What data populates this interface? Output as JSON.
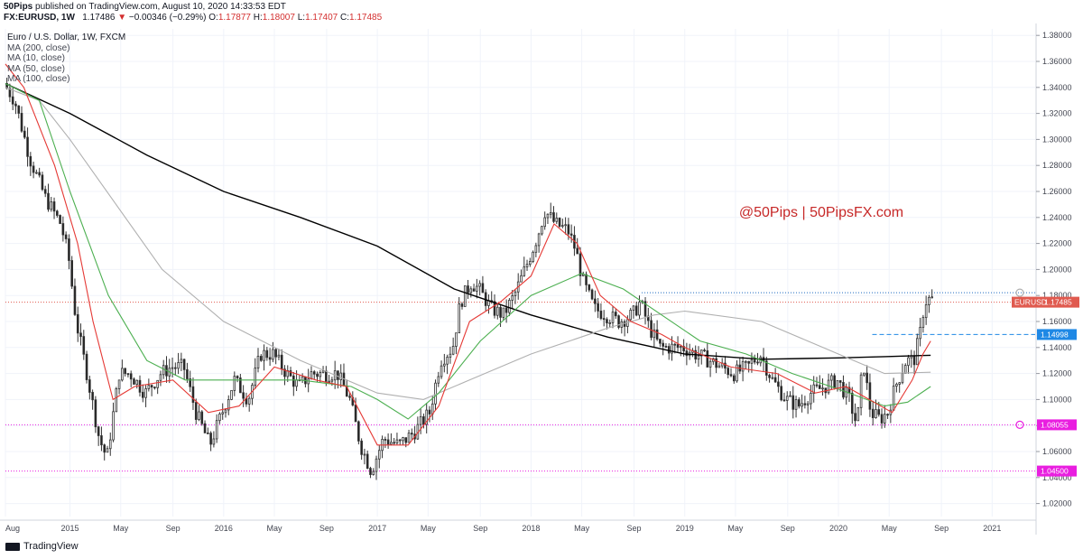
{
  "header": {
    "publisher": "50Pips",
    "published_text": "published on TradingView.com, August 10, 2020 14:33:53 EDT",
    "symbol": "FX:EURUSD, 1W",
    "last": "1.17486",
    "change_arrow": "▼",
    "change": "−0.00346 (−0.29%)",
    "open_label": "O:",
    "open": "1.17877",
    "high_label": "H:",
    "high": "1.18007",
    "low_label": "L:",
    "low": "1.17407",
    "close_label": "C:",
    "close": "1.17485"
  },
  "legend": {
    "title": "Euro / U.S. Dollar, 1W, FXCM",
    "items": [
      "MA (200, close)",
      "MA (10, close)",
      "MA (50, close)",
      "MA (100, close)"
    ]
  },
  "watermark": "@50Pips  |  50PipsFX.com",
  "footer": {
    "brand": "TradingView"
  },
  "colors": {
    "up": "#26a69a",
    "down": "#ef5350",
    "candle": "#4a4a4a",
    "ma200": "#000000",
    "ma10": "#e53935",
    "ma50": "#4caf50",
    "ma100": "#b0b0b0",
    "watermark": "#c62828",
    "price_tag": "#e05a4f",
    "blue_tag": "#1e88e5",
    "magenta_tag": "#e91ee0"
  },
  "chart_data": {
    "type": "candlestick",
    "symbol": "EURUSD",
    "interval": "1W",
    "y_axis": {
      "range": [
        1.01,
        1.385
      ],
      "ticks": [
        "1.38000",
        "1.36000",
        "1.34000",
        "1.32000",
        "1.30000",
        "1.28000",
        "1.26000",
        "1.24000",
        "1.22000",
        "1.20000",
        "1.18000",
        "1.16000",
        "1.14000",
        "1.12000",
        "1.10000",
        "1.08000",
        "1.06000",
        "1.04000",
        "1.02000"
      ]
    },
    "x_axis": {
      "labels": [
        {
          "t": "Aug",
          "d": 2014.58
        },
        {
          "t": "2015",
          "d": 2015.0
        },
        {
          "t": "May",
          "d": 2015.33
        },
        {
          "t": "Sep",
          "d": 2015.67
        },
        {
          "t": "2016",
          "d": 2016.0
        },
        {
          "t": "May",
          "d": 2016.33
        },
        {
          "t": "Sep",
          "d": 2016.67
        },
        {
          "t": "2017",
          "d": 2017.0
        },
        {
          "t": "May",
          "d": 2017.33
        },
        {
          "t": "Sep",
          "d": 2017.67
        },
        {
          "t": "2018",
          "d": 2018.0
        },
        {
          "t": "May",
          "d": 2018.33
        },
        {
          "t": "Sep",
          "d": 2018.67
        },
        {
          "t": "2019",
          "d": 2019.0
        },
        {
          "t": "May",
          "d": 2019.33
        },
        {
          "t": "Sep",
          "d": 2019.67
        },
        {
          "t": "2020",
          "d": 2020.0
        },
        {
          "t": "May",
          "d": 2020.33
        },
        {
          "t": "Sep",
          "d": 2020.67
        },
        {
          "t": "2021",
          "d": 2021.0
        }
      ],
      "range": [
        2014.58,
        2021.28
      ]
    },
    "price_path": [
      [
        2014.58,
        1.343
      ],
      [
        2014.65,
        1.33
      ],
      [
        2014.75,
        1.285
      ],
      [
        2014.85,
        1.255
      ],
      [
        2014.95,
        1.235
      ],
      [
        2015.0,
        1.21
      ],
      [
        2015.05,
        1.16
      ],
      [
        2015.12,
        1.12
      ],
      [
        2015.2,
        1.07
      ],
      [
        2015.25,
        1.055
      ],
      [
        2015.33,
        1.12
      ],
      [
        2015.4,
        1.12
      ],
      [
        2015.5,
        1.105
      ],
      [
        2015.6,
        1.12
      ],
      [
        2015.67,
        1.125
      ],
      [
        2015.75,
        1.125
      ],
      [
        2015.83,
        1.09
      ],
      [
        2015.92,
        1.065
      ],
      [
        2016.0,
        1.09
      ],
      [
        2016.08,
        1.115
      ],
      [
        2016.17,
        1.1
      ],
      [
        2016.25,
        1.135
      ],
      [
        2016.33,
        1.135
      ],
      [
        2016.42,
        1.12
      ],
      [
        2016.5,
        1.11
      ],
      [
        2016.58,
        1.12
      ],
      [
        2016.67,
        1.12
      ],
      [
        2016.75,
        1.12
      ],
      [
        2016.83,
        1.1
      ],
      [
        2016.9,
        1.065
      ],
      [
        2016.97,
        1.045
      ],
      [
        2017.05,
        1.07
      ],
      [
        2017.15,
        1.065
      ],
      [
        2017.25,
        1.075
      ],
      [
        2017.35,
        1.09
      ],
      [
        2017.42,
        1.13
      ],
      [
        2017.5,
        1.14
      ],
      [
        2017.55,
        1.175
      ],
      [
        2017.62,
        1.19
      ],
      [
        2017.67,
        1.185
      ],
      [
        2017.75,
        1.17
      ],
      [
        2017.83,
        1.165
      ],
      [
        2017.9,
        1.18
      ],
      [
        2017.97,
        1.2
      ],
      [
        2018.05,
        1.225
      ],
      [
        2018.1,
        1.245
      ],
      [
        2018.17,
        1.235
      ],
      [
        2018.25,
        1.23
      ],
      [
        2018.3,
        1.215
      ],
      [
        2018.35,
        1.19
      ],
      [
        2018.42,
        1.17
      ],
      [
        2018.5,
        1.165
      ],
      [
        2018.58,
        1.16
      ],
      [
        2018.67,
        1.165
      ],
      [
        2018.72,
        1.175
      ],
      [
        2018.78,
        1.155
      ],
      [
        2018.85,
        1.14
      ],
      [
        2018.92,
        1.14
      ],
      [
        2019.0,
        1.14
      ],
      [
        2019.08,
        1.135
      ],
      [
        2019.17,
        1.13
      ],
      [
        2019.25,
        1.125
      ],
      [
        2019.33,
        1.12
      ],
      [
        2019.42,
        1.125
      ],
      [
        2019.5,
        1.135
      ],
      [
        2019.58,
        1.115
      ],
      [
        2019.67,
        1.1
      ],
      [
        2019.75,
        1.095
      ],
      [
        2019.83,
        1.105
      ],
      [
        2019.92,
        1.11
      ],
      [
        2020.0,
        1.115
      ],
      [
        2020.08,
        1.1
      ],
      [
        2020.13,
        1.08
      ],
      [
        2020.17,
        1.13
      ],
      [
        2020.22,
        1.09
      ],
      [
        2020.28,
        1.085
      ],
      [
        2020.33,
        1.09
      ],
      [
        2020.38,
        1.11
      ],
      [
        2020.45,
        1.13
      ],
      [
        2020.5,
        1.13
      ],
      [
        2020.54,
        1.15
      ],
      [
        2020.57,
        1.175
      ],
      [
        2020.6,
        1.177
      ]
    ],
    "moving_averages": [
      {
        "name": "MA (200, close)",
        "points": [
          [
            2014.58,
            1.343
          ],
          [
            2015.0,
            1.32
          ],
          [
            2015.5,
            1.288
          ],
          [
            2016.0,
            1.26
          ],
          [
            2016.5,
            1.24
          ],
          [
            2017.0,
            1.218
          ],
          [
            2017.5,
            1.185
          ],
          [
            2018.0,
            1.165
          ],
          [
            2018.5,
            1.148
          ],
          [
            2019.0,
            1.135
          ],
          [
            2019.5,
            1.131
          ],
          [
            2020.0,
            1.132
          ],
          [
            2020.3,
            1.133
          ],
          [
            2020.6,
            1.134
          ]
        ]
      },
      {
        "name": "MA (100, close)",
        "points": [
          [
            2014.58,
            1.34
          ],
          [
            2014.8,
            1.33
          ],
          [
            2015.0,
            1.3
          ],
          [
            2015.3,
            1.25
          ],
          [
            2015.6,
            1.2
          ],
          [
            2016.0,
            1.16
          ],
          [
            2016.5,
            1.13
          ],
          [
            2017.0,
            1.105
          ],
          [
            2017.3,
            1.1
          ],
          [
            2017.6,
            1.115
          ],
          [
            2018.0,
            1.135
          ],
          [
            2018.5,
            1.155
          ],
          [
            2018.8,
            1.165
          ],
          [
            2019.0,
            1.168
          ],
          [
            2019.5,
            1.16
          ],
          [
            2019.8,
            1.145
          ],
          [
            2020.1,
            1.13
          ],
          [
            2020.3,
            1.12
          ],
          [
            2020.6,
            1.121
          ]
        ]
      },
      {
        "name": "MA (50, close)",
        "points": [
          [
            2014.58,
            1.343
          ],
          [
            2014.8,
            1.33
          ],
          [
            2015.0,
            1.26
          ],
          [
            2015.25,
            1.18
          ],
          [
            2015.5,
            1.13
          ],
          [
            2015.75,
            1.115
          ],
          [
            2016.0,
            1.115
          ],
          [
            2016.5,
            1.115
          ],
          [
            2016.83,
            1.11
          ],
          [
            2017.0,
            1.1
          ],
          [
            2017.2,
            1.085
          ],
          [
            2017.4,
            1.105
          ],
          [
            2017.67,
            1.145
          ],
          [
            2018.0,
            1.18
          ],
          [
            2018.33,
            1.197
          ],
          [
            2018.6,
            1.185
          ],
          [
            2018.85,
            1.165
          ],
          [
            2019.1,
            1.145
          ],
          [
            2019.4,
            1.135
          ],
          [
            2019.7,
            1.12
          ],
          [
            2020.0,
            1.108
          ],
          [
            2020.3,
            1.095
          ],
          [
            2020.45,
            1.098
          ],
          [
            2020.6,
            1.11
          ]
        ]
      },
      {
        "name": "MA (10, close)",
        "points": [
          [
            2014.58,
            1.358
          ],
          [
            2014.7,
            1.34
          ],
          [
            2014.9,
            1.28
          ],
          [
            2015.05,
            1.22
          ],
          [
            2015.15,
            1.16
          ],
          [
            2015.28,
            1.1
          ],
          [
            2015.42,
            1.11
          ],
          [
            2015.67,
            1.115
          ],
          [
            2015.9,
            1.09
          ],
          [
            2016.1,
            1.095
          ],
          [
            2016.33,
            1.125
          ],
          [
            2016.6,
            1.115
          ],
          [
            2016.8,
            1.11
          ],
          [
            2017.0,
            1.065
          ],
          [
            2017.2,
            1.065
          ],
          [
            2017.4,
            1.095
          ],
          [
            2017.6,
            1.16
          ],
          [
            2017.8,
            1.175
          ],
          [
            2018.0,
            1.195
          ],
          [
            2018.15,
            1.235
          ],
          [
            2018.3,
            1.22
          ],
          [
            2018.45,
            1.18
          ],
          [
            2018.65,
            1.16
          ],
          [
            2018.85,
            1.15
          ],
          [
            2019.0,
            1.14
          ],
          [
            2019.3,
            1.125
          ],
          [
            2019.6,
            1.12
          ],
          [
            2019.85,
            1.105
          ],
          [
            2020.05,
            1.11
          ],
          [
            2020.2,
            1.1
          ],
          [
            2020.35,
            1.09
          ],
          [
            2020.48,
            1.115
          ],
          [
            2020.55,
            1.135
          ],
          [
            2020.6,
            1.145
          ]
        ]
      }
    ],
    "horizontal_levels": [
      {
        "price": 1.18212,
        "style": "dotted",
        "color": "#1565c0",
        "from": 2018.72,
        "label": ""
      },
      {
        "price": 1.14998,
        "style": "dashed",
        "color": "#1e88e5",
        "from": 2020.22,
        "label": "1.14998"
      },
      {
        "price": 1.08055,
        "style": "dotted",
        "color": "#e91ee0",
        "from": 2014.58,
        "label": "1.08055"
      },
      {
        "price": 1.045,
        "style": "dotted",
        "color": "#e91ee0",
        "from": 2014.58,
        "label": "1.04500"
      },
      {
        "price": 1.17485,
        "style": "dotted",
        "color": "#e05a4f",
        "from": 2014.58,
        "label": "1.17485",
        "prefix": "EURUSD"
      }
    ]
  }
}
